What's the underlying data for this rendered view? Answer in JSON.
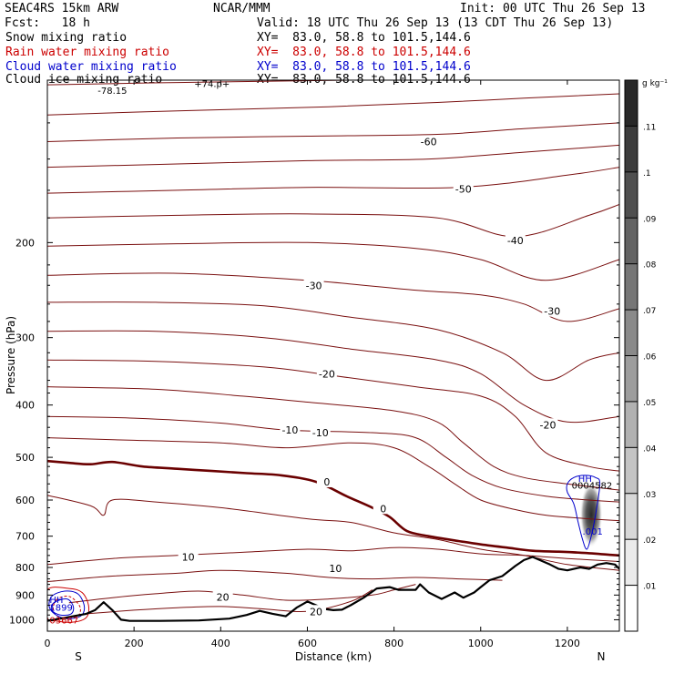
{
  "header": {
    "model": "SEAC4RS 15km ARW",
    "fcst": "Fcst:   18 h",
    "org": "NCAR/MMM",
    "init": "Init: 00 UTC Thu 26 Sep 13",
    "valid": "Valid: 18 UTC Thu 26 Sep 13 (13 CDT Thu 26 Sep 13)"
  },
  "fields": [
    {
      "name": "Snow mixing ratio",
      "xy": "XY=  83.0, 58.8 to 101.5,144.6",
      "color": "#000000"
    },
    {
      "name": "Rain water mixing ratio",
      "xy": "XY=  83.0, 58.8 to 101.5,144.6",
      "color": "#cc0000"
    },
    {
      "name": "Cloud water mixing ratio",
      "xy": "XY=  83.0, 58.8 to 101.5,144.6",
      "color": "#0000cc"
    },
    {
      "name": "Cloud ice mixing ratio",
      "xy": "XY=  83.0, 58.8 to 101.5,144.6",
      "color": "#000000"
    }
  ],
  "chart_data": {
    "type": "contour",
    "xlabel": "Distance (km)",
    "ylabel": "Pressure (hPa)",
    "xlim": [
      0,
      1320
    ],
    "ylim": [
      1050,
      100
    ],
    "y_scale": "log",
    "x_ticks": [
      0,
      200,
      400,
      600,
      800,
      1000,
      1200
    ],
    "y_ticks": [
      200,
      300,
      400,
      500,
      600,
      700,
      800,
      900,
      1000
    ],
    "x_tick_labels": [
      "0",
      "200",
      "400",
      "600",
      "800",
      "1000",
      "1200"
    ],
    "y_tick_labels": [
      "200",
      "300",
      "400",
      "500",
      "600",
      "700",
      "800",
      "900",
      "1000"
    ],
    "endpoints": {
      "left": "S",
      "right": "N"
    },
    "colorbar": {
      "unit": "g kg⁻¹",
      "ticks": [
        ".01",
        ".02",
        ".03",
        ".04",
        ".05",
        ".06",
        ".07",
        ".08",
        ".09",
        ".1",
        ".11"
      ],
      "values": [
        0.01,
        0.02,
        0.03,
        0.04,
        0.05,
        0.06,
        0.07,
        0.08,
        0.09,
        0.1,
        0.11
      ]
    },
    "temperature_labels": [
      {
        "text": "-60",
        "x": 880,
        "p": 130
      },
      {
        "text": "-50",
        "x": 960,
        "p": 159
      },
      {
        "text": "-40",
        "x": 1080,
        "p": 198
      },
      {
        "text": "-30",
        "x": 615,
        "p": 240
      },
      {
        "text": "-30",
        "x": 1165,
        "p": 268
      },
      {
        "text": "-20",
        "x": 645,
        "p": 350
      },
      {
        "text": "-20",
        "x": 1155,
        "p": 435
      },
      {
        "text": "-10",
        "x": 560,
        "p": 445
      },
      {
        "text": "-10",
        "x": 630,
        "p": 450
      },
      {
        "text": "0",
        "x": 645,
        "p": 555
      },
      {
        "text": "0",
        "x": 775,
        "p": 622
      },
      {
        "text": "10",
        "x": 325,
        "p": 765
      },
      {
        "text": "10",
        "x": 665,
        "p": 803
      },
      {
        "text": "20",
        "x": 405,
        "p": 908
      },
      {
        "text": "20",
        "x": 620,
        "p": 965
      }
    ],
    "top_labels": [
      {
        "text": "-78.15",
        "x": 150,
        "p": 106
      },
      {
        "text": "+74.p+",
        "x": 380,
        "p": 103
      }
    ],
    "max_labels": [
      {
        "text": "HH",
        "x": 1225,
        "p": 555,
        "color": "#0000cc"
      },
      {
        "text": "0004582",
        "x": 1210,
        "p": 572,
        "color": "#000000"
      },
      {
        "text": ".001",
        "x": 1235,
        "p": 695,
        "color": "#0000cc"
      },
      {
        "text": "HH",
        "x": 5,
        "p": 930,
        "color": "#0000cc"
      },
      {
        "text": "1899",
        "x": 5,
        "p": 962,
        "color": "#0000cc"
      },
      {
        "text": "03667",
        "x": 5,
        "p": 1015,
        "color": "#cc0000"
      }
    ],
    "terrain": {
      "x": [
        0,
        30,
        60,
        90,
        110,
        130,
        150,
        170,
        190,
        260,
        350,
        420,
        460,
        490,
        520,
        550,
        575,
        600,
        620,
        640,
        660,
        680,
        700,
        730,
        760,
        790,
        810,
        830,
        850,
        860,
        880,
        910,
        940,
        960,
        985,
        1000,
        1020,
        1050,
        1080,
        1100,
        1120,
        1160,
        1180,
        1200,
        1230,
        1250,
        1270,
        1290,
        1310,
        1320
      ],
      "p": [
        1005,
        995,
        985,
        975,
        960,
        928,
        960,
        1000,
        1005,
        1005,
        1003,
        995,
        980,
        963,
        975,
        985,
        950,
        925,
        940,
        955,
        960,
        958,
        940,
        910,
        875,
        870,
        880,
        880,
        880,
        860,
        890,
        915,
        890,
        910,
        890,
        870,
        845,
        830,
        795,
        775,
        765,
        790,
        805,
        810,
        800,
        805,
        790,
        785,
        790,
        805
      ]
    },
    "freezing_level": {
      "x": [
        0,
        50,
        100,
        150,
        220,
        300,
        380,
        460,
        540,
        620,
        690,
        750,
        790,
        830,
        880,
        950,
        1000,
        1060,
        1120,
        1180,
        1240,
        1300,
        1320
      ],
      "p": [
        508,
        512,
        515,
        510,
        520,
        525,
        530,
        535,
        540,
        555,
        590,
        620,
        645,
        685,
        700,
        715,
        725,
        735,
        745,
        748,
        752,
        758,
        760
      ]
    },
    "isotherms": [
      {
        "x": [
          0,
          300,
          700,
          1000,
          1320
        ],
        "p": [
          102,
          101,
          100,
          99,
          98
        ]
      },
      {
        "x": [
          0,
          300,
          650,
          900,
          1100,
          1320
        ],
        "p": [
          116,
          114,
          112,
          110,
          108,
          106
        ]
      },
      {
        "x": [
          0,
          300,
          600,
          900,
          1100,
          1320
        ],
        "p": [
          130,
          128,
          127,
          126,
          123,
          120
        ]
      },
      {
        "x": [
          0,
          300,
          600,
          880,
          1100,
          1320
        ],
        "p": [
          145,
          143,
          141,
          140,
          136,
          132
        ]
      },
      {
        "x": [
          0,
          300,
          600,
          950,
          1200,
          1320
        ],
        "p": [
          162,
          160,
          158,
          158,
          150,
          145
        ]
      },
      {
        "x": [
          0,
          300,
          600,
          900,
          1080,
          1250,
          1320
        ],
        "p": [
          180,
          178,
          177,
          180,
          195,
          178,
          170
        ]
      },
      {
        "x": [
          0,
          300,
          600,
          850,
          1000,
          1150,
          1320
        ],
        "p": [
          203,
          201,
          200,
          205,
          215,
          235,
          215
        ]
      },
      {
        "x": [
          0,
          300,
          600,
          850,
          1000,
          1100,
          1200,
          1320
        ],
        "p": [
          230,
          228,
          235,
          245,
          250,
          260,
          280,
          265
        ]
      },
      {
        "x": [
          0,
          250,
          500,
          700,
          900,
          1050,
          1150,
          1250,
          1320
        ],
        "p": [
          258,
          258,
          262,
          275,
          290,
          320,
          360,
          330,
          320
        ]
      },
      {
        "x": [
          0,
          250,
          500,
          700,
          900,
          1000,
          1100,
          1200,
          1320
        ],
        "p": [
          292,
          292,
          300,
          315,
          330,
          350,
          400,
          430,
          420
        ]
      },
      {
        "x": [
          0,
          250,
          500,
          650,
          850,
          1000,
          1080,
          1150,
          1250,
          1320
        ],
        "p": [
          330,
          332,
          340,
          352,
          370,
          385,
          420,
          490,
          520,
          530
        ]
      },
      {
        "x": [
          0,
          250,
          450,
          600,
          800,
          900,
          960,
          1030,
          1100,
          1200,
          1320
        ],
        "p": [
          370,
          374,
          385,
          395,
          410,
          430,
          470,
          520,
          545,
          560,
          575
        ]
      },
      {
        "x": [
          0,
          200,
          400,
          550,
          750,
          850,
          920,
          980,
          1050,
          1150,
          1250,
          1320
        ],
        "p": [
          420,
          423,
          432,
          445,
          450,
          460,
          500,
          540,
          570,
          590,
          600,
          605
        ]
      },
      {
        "x": [
          0,
          200,
          400,
          550,
          700,
          800,
          880,
          940,
          1000,
          1080,
          1150,
          1250,
          1320
        ],
        "p": [
          460,
          465,
          470,
          480,
          470,
          480,
          520,
          560,
          600,
          625,
          640,
          650,
          655
        ]
      },
      {
        "x": [
          0,
          100,
          130,
          150,
          250,
          400,
          600,
          700,
          800,
          900,
          1000,
          1100,
          1200,
          1320
        ],
        "p": [
          588,
          615,
          640,
          600,
          605,
          620,
          650,
          660,
          690,
          710,
          740,
          760,
          790,
          810
        ]
      },
      {
        "x": [
          0,
          150,
          300,
          450,
          600,
          700,
          800,
          900,
          1000,
          1100,
          1200,
          1320
        ],
        "p": [
          790,
          770,
          760,
          750,
          740,
          745,
          735,
          740,
          755,
          760,
          770,
          780
        ]
      },
      {
        "x": [
          0,
          150,
          300,
          400,
          550,
          650,
          750,
          850,
          950,
          1050
        ],
        "p": [
          850,
          830,
          820,
          810,
          820,
          835,
          840,
          835,
          840,
          845
        ]
      },
      {
        "x": [
          50,
          150,
          250,
          350,
          450,
          550,
          650,
          750,
          800,
          850
        ],
        "p": [
          930,
          910,
          895,
          885,
          900,
          920,
          915,
          900,
          880,
          860
        ]
      },
      {
        "x": [
          90,
          200,
          300,
          400,
          500,
          600,
          700,
          750
        ],
        "p": [
          975,
          960,
          950,
          945,
          955,
          965,
          925,
          880
        ]
      }
    ],
    "cloud_core": {
      "x_center": 1255,
      "p_center": 645,
      "x_halfwidth": 26,
      "p_top": 555,
      "p_bottom": 735
    },
    "cloud_water_contours": [
      {
        "x": [
          1200,
          1215,
          1240,
          1265,
          1275,
          1265,
          1255,
          1245,
          1235,
          1225,
          1215,
          1200
        ],
        "p": [
          560,
          545,
          540,
          545,
          560,
          640,
          700,
          740,
          710,
          660,
          610,
          580
        ]
      },
      {
        "x": [
          10,
          40,
          70,
          85,
          80,
          55,
          25,
          5
        ],
        "p": [
          905,
          885,
          895,
          940,
          980,
          995,
          985,
          950
        ]
      },
      {
        "x": [
          15,
          45,
          60,
          55,
          30,
          10
        ],
        "p": [
          930,
          915,
          945,
          975,
          980,
          960
        ]
      }
    ],
    "rain_contours": [
      {
        "x": [
          0,
          50,
          80,
          95,
          90,
          60,
          20,
          0
        ],
        "p": [
          880,
          875,
          890,
          940,
          990,
          1010,
          1005,
          990
        ]
      },
      {
        "x": [
          20,
          50,
          75,
          70,
          40,
          15
        ],
        "p": [
          920,
          905,
          945,
          985,
          995,
          970
        ]
      }
    ]
  }
}
